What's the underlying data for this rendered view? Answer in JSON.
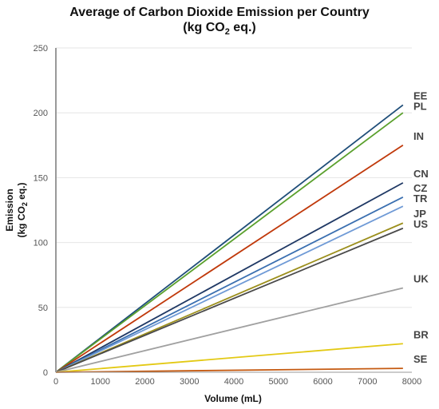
{
  "chart_data": {
    "type": "line",
    "title_line1": "Average of Carbon Dioxide Emission per Country",
    "title_line2": "(kg CO",
    "title_line2_sub": "2",
    "title_line2_end": " eq.)",
    "xlabel": "Volume (mL)",
    "ylabel_line1": "Emission",
    "ylabel_line2": "(kg CO",
    "ylabel_line2_sub": "2",
    "ylabel_line2_end": " eq.)",
    "xlim": [
      0,
      8000
    ],
    "ylim": [
      0,
      250
    ],
    "xticks": [
      "0",
      "1000",
      "2000",
      "3000",
      "4000",
      "5000",
      "6000",
      "7000",
      "8000"
    ],
    "yticks": [
      "0",
      "50",
      "100",
      "150",
      "200",
      "250"
    ],
    "grid": "horizontal",
    "series": [
      {
        "name": "EE",
        "color": "#1f4e79",
        "x": [
          0,
          7800
        ],
        "y": [
          0,
          206
        ]
      },
      {
        "name": "PL",
        "color": "#5aa02c",
        "x": [
          0,
          7800
        ],
        "y": [
          0,
          200
        ]
      },
      {
        "name": "IN",
        "color": "#c0390b",
        "x": [
          0,
          7800
        ],
        "y": [
          0,
          175
        ]
      },
      {
        "name": "CN",
        "color": "#1f3864",
        "x": [
          0,
          7800
        ],
        "y": [
          0,
          146
        ]
      },
      {
        "name": "CZ",
        "color": "#3a6fb0",
        "x": [
          0,
          7800
        ],
        "y": [
          0,
          135
        ]
      },
      {
        "name": "TR",
        "color": "#6f9ad6",
        "x": [
          0,
          7800
        ],
        "y": [
          0,
          128
        ]
      },
      {
        "name": "JP",
        "color": "#9c8f1c",
        "x": [
          0,
          7800
        ],
        "y": [
          0,
          115
        ]
      },
      {
        "name": "US",
        "color": "#4a4a4a",
        "x": [
          0,
          7800
        ],
        "y": [
          0,
          111
        ]
      },
      {
        "name": "UK",
        "color": "#a0a0a0",
        "x": [
          0,
          7800
        ],
        "y": [
          0,
          65
        ]
      },
      {
        "name": "BR",
        "color": "#e3c914",
        "x": [
          0,
          7800
        ],
        "y": [
          0,
          22
        ]
      },
      {
        "name": "SE",
        "color": "#c55a11",
        "x": [
          0,
          7800
        ],
        "y": [
          0,
          3
        ]
      }
    ]
  }
}
